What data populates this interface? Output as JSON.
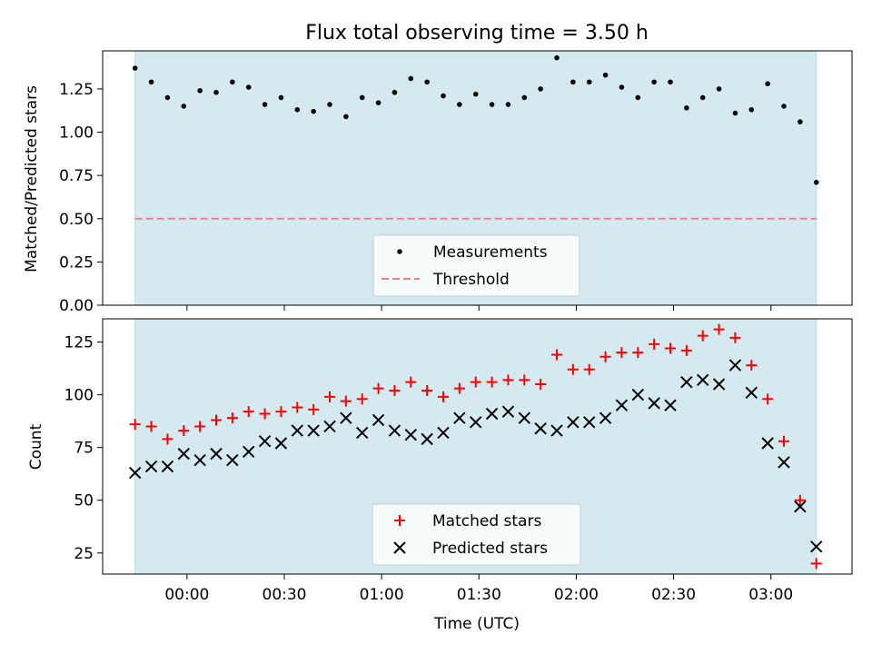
{
  "chart_data": [
    {
      "type": "scatter",
      "title": "Flux total observing time = 3.50 h",
      "xlabel": "",
      "ylabel": "Matched/Predicted stars",
      "ylim": [
        0,
        1.47
      ],
      "yticks": [
        "0.00",
        "0.25",
        "0.50",
        "0.75",
        "1.00",
        "1.25"
      ],
      "xlim_minutes": [
        -26,
        205
      ],
      "shaded_span_minutes": [
        -16,
        194
      ],
      "shade_color": "#d4eaf0",
      "legend_position": "lower center",
      "x_minutes": [
        -16,
        -11,
        -6,
        -1,
        4,
        9,
        14,
        19,
        24,
        29,
        34,
        39,
        44,
        49,
        54,
        59,
        64,
        69,
        74,
        79,
        84,
        89,
        94,
        99,
        104,
        109,
        114,
        119,
        124,
        129,
        134,
        139,
        144,
        149,
        154,
        159,
        164,
        169,
        174,
        179,
        184,
        189,
        194
      ],
      "series": [
        {
          "name": "Measurements",
          "marker": "dot",
          "color": "#000000",
          "values": [
            1.37,
            1.29,
            1.2,
            1.15,
            1.24,
            1.23,
            1.29,
            1.26,
            1.16,
            1.2,
            1.13,
            1.12,
            1.16,
            1.09,
            1.2,
            1.17,
            1.23,
            1.31,
            1.29,
            1.21,
            1.16,
            1.22,
            1.16,
            1.16,
            1.2,
            1.25,
            1.43,
            1.29,
            1.29,
            1.33,
            1.26,
            1.2,
            1.29,
            1.29,
            1.14,
            1.2,
            1.25,
            1.11,
            1.13,
            1.28,
            1.15,
            1.06,
            0.71
          ]
        },
        {
          "name": "Threshold",
          "marker": "dashed-line",
          "color": "#f08080",
          "values": [
            0.5
          ]
        }
      ]
    },
    {
      "type": "scatter",
      "title": "",
      "xlabel": "Time (UTC)",
      "ylabel": "Count",
      "ylim": [
        15,
        136
      ],
      "yticks": [
        "25",
        "50",
        "75",
        "100",
        "125"
      ],
      "xticks": [
        "00:00",
        "00:30",
        "01:00",
        "01:30",
        "02:00",
        "02:30",
        "03:00"
      ],
      "xlim_minutes": [
        -26,
        205
      ],
      "legend_position": "lower center",
      "x_minutes": [
        -16,
        -11,
        -6,
        -1,
        4,
        9,
        14,
        19,
        24,
        29,
        34,
        39,
        44,
        49,
        54,
        59,
        64,
        69,
        74,
        79,
        84,
        89,
        94,
        99,
        104,
        109,
        114,
        119,
        124,
        129,
        134,
        139,
        144,
        149,
        154,
        159,
        164,
        169,
        174,
        179,
        184,
        189,
        194
      ],
      "series": [
        {
          "name": "Matched stars",
          "marker": "plus",
          "color": "#ff0000",
          "values": [
            86,
            85,
            79,
            83,
            85,
            88,
            89,
            92,
            91,
            92,
            94,
            93,
            99,
            97,
            98,
            103,
            102,
            106,
            102,
            99,
            103,
            106,
            106,
            107,
            107,
            105,
            119,
            112,
            112,
            118,
            120,
            120,
            124,
            122,
            121,
            128,
            131,
            127,
            114,
            98,
            78,
            50,
            20
          ]
        },
        {
          "name": "Predicted stars",
          "marker": "cross",
          "color": "#000000",
          "values": [
            63,
            66,
            66,
            72,
            69,
            72,
            69,
            73,
            78,
            77,
            83,
            83,
            85,
            89,
            82,
            88,
            83,
            81,
            79,
            82,
            89,
            87,
            91,
            92,
            89,
            84,
            83,
            87,
            87,
            89,
            95,
            100,
            96,
            95,
            106,
            107,
            105,
            114,
            101,
            77,
            68,
            47,
            28
          ]
        }
      ]
    }
  ]
}
